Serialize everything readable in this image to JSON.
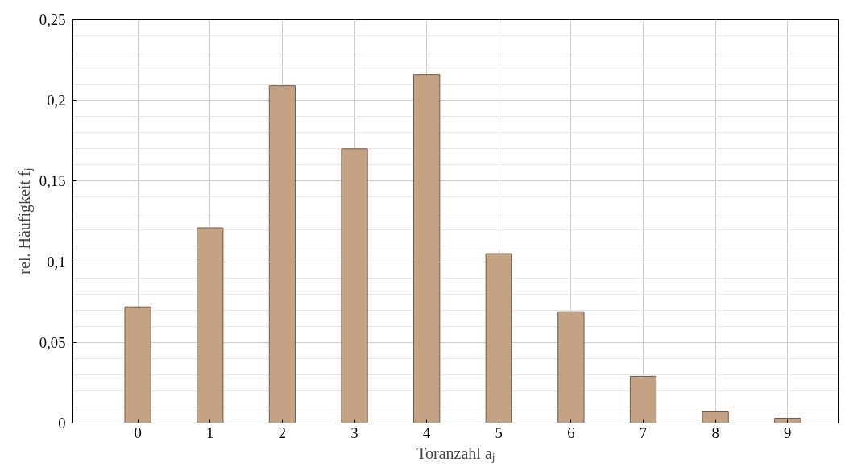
{
  "chart_data": {
    "type": "bar",
    "xlabel": "Toranzahl aⱼ",
    "ylabel": "rel. Häufigkeit fⱼ",
    "x": [
      0,
      1,
      2,
      3,
      4,
      5,
      6,
      7,
      8,
      9
    ],
    "values": [
      0.072,
      0.121,
      0.209,
      0.17,
      0.216,
      0.105,
      0.069,
      0.029,
      0.007,
      0.003
    ],
    "color": "#c4a385",
    "xlim": [
      -0.9,
      9.7
    ],
    "xticks": [
      0,
      1,
      2,
      3,
      4,
      5,
      6,
      7,
      8,
      9
    ],
    "ylim": [
      0,
      0.25
    ],
    "yticks": [
      0,
      {
        "value": 0.05,
        "label": "0,05"
      },
      {
        "value": 0.1,
        "label": "0,1"
      },
      {
        "value": 0.15,
        "label": "0,15"
      },
      {
        "value": 0.2,
        "label": "0,2"
      },
      {
        "value": 0.25,
        "label": "0,25"
      }
    ],
    "grid": true
  }
}
